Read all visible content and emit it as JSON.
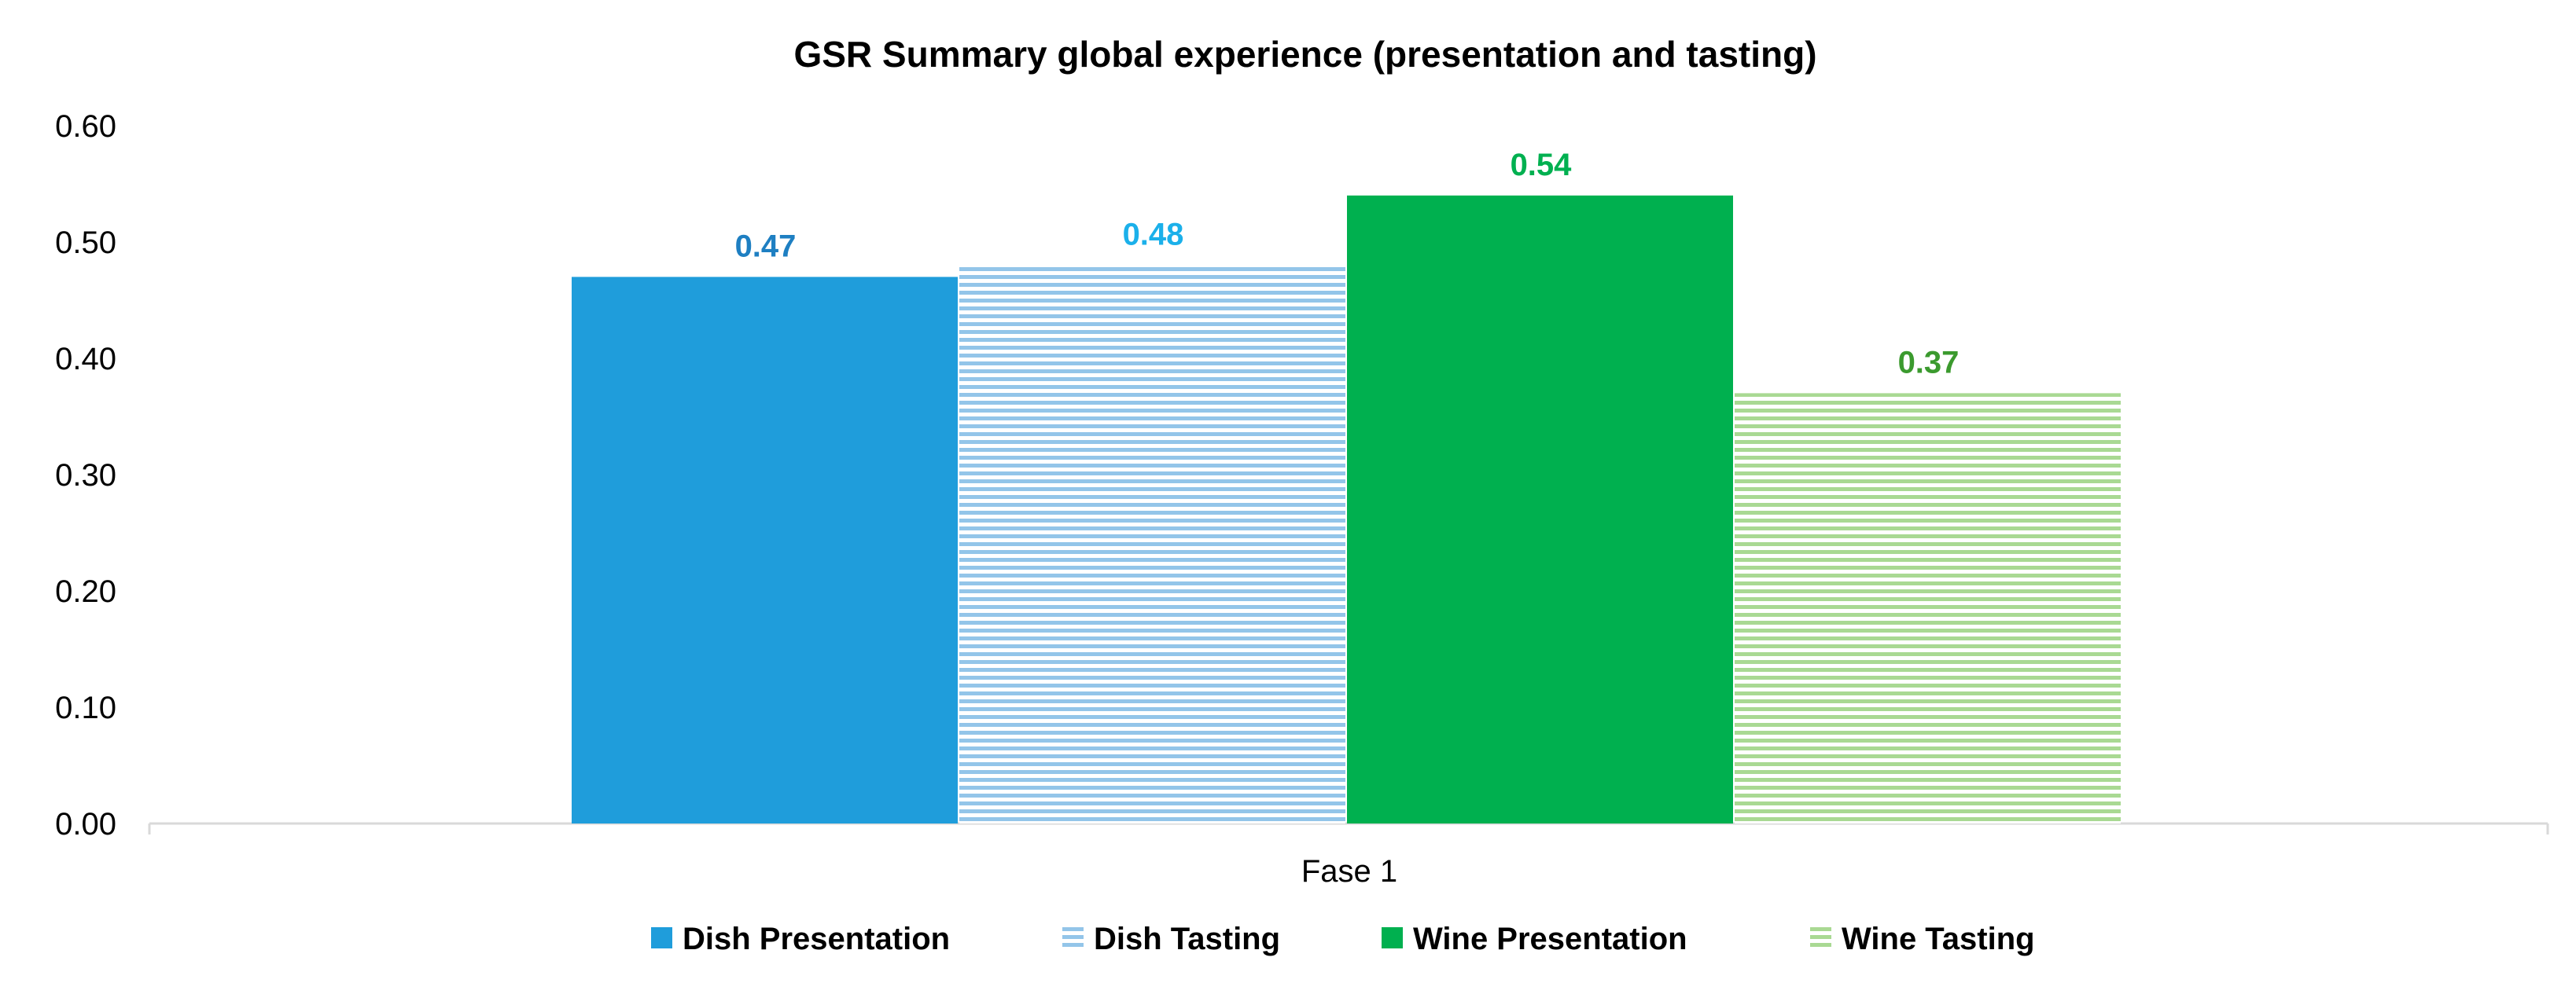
{
  "chart_data": {
    "type": "bar",
    "title": "GSR Summary global experience (presentation and tasting)",
    "xlabel": "",
    "ylabel": "",
    "categories": [
      "Fase 1"
    ],
    "ylim": [
      0,
      0.6
    ],
    "yticks": [
      "0.00",
      "0.10",
      "0.20",
      "0.30",
      "0.40",
      "0.50",
      "0.60"
    ],
    "grid": false,
    "legend_position": "bottom",
    "series": [
      {
        "name": "Dish Presentation",
        "values": [
          0.47
        ],
        "label": "0.47",
        "color": "#1F9DDB",
        "label_color": "#1E7FC2",
        "fill": "solid"
      },
      {
        "name": "Dish Tasting",
        "values": [
          0.48
        ],
        "label": "0.48",
        "color": "#93C5E9",
        "label_color": "#1BB0EA",
        "fill": "horizontal-stripes"
      },
      {
        "name": "Wine Presentation",
        "values": [
          0.54
        ],
        "label": "0.54",
        "color": "#00B04F",
        "label_color": "#00B050",
        "fill": "solid"
      },
      {
        "name": "Wine Tasting",
        "values": [
          0.37
        ],
        "label": "0.37",
        "color": "#A9D993",
        "label_color": "#3B9A2E",
        "fill": "horizontal-stripes"
      }
    ]
  }
}
